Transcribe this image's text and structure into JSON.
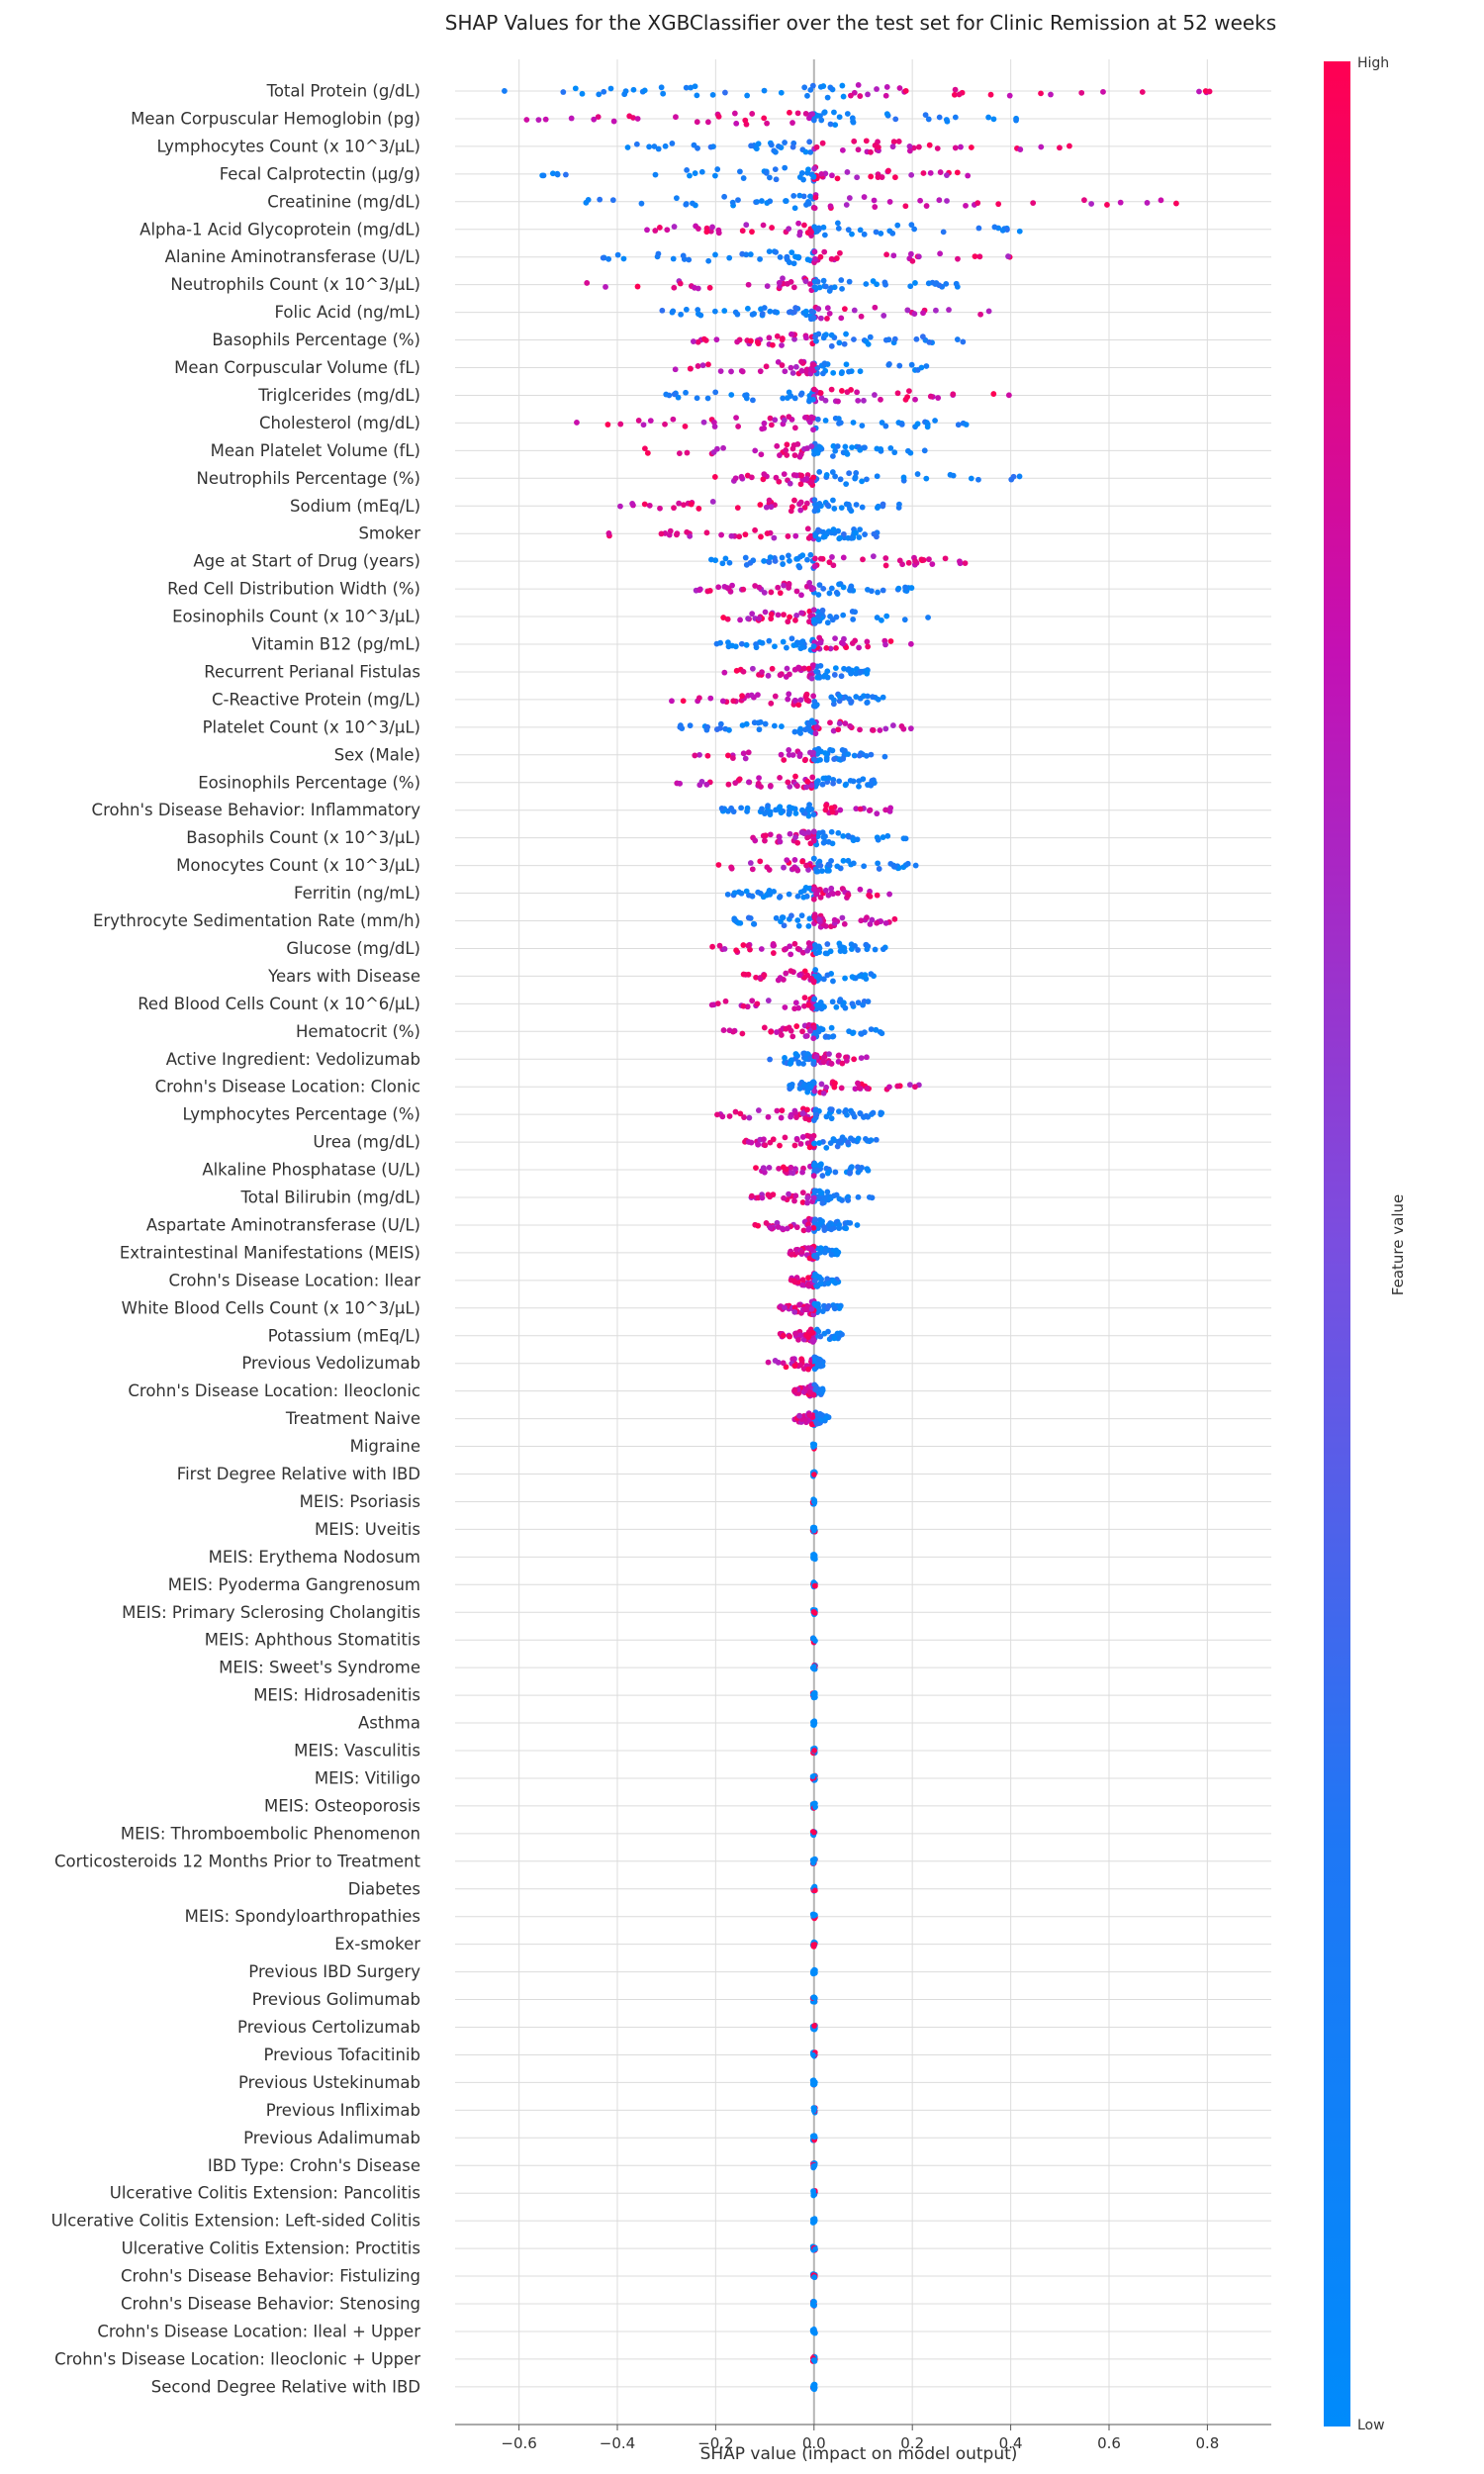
{
  "chart_data": {
    "type": "scatter",
    "title": "SHAP Values for the XGBClassifier over the test set for Clinic Remission at 52 weeks",
    "xlabel": "SHAP value (impact on model output)",
    "xlim": [
      -0.73,
      0.93
    ],
    "xticks": [
      -0.6,
      -0.4,
      -0.2,
      0.0,
      0.2,
      0.4,
      0.6,
      0.8
    ],
    "xtick_labels": [
      "−0.6",
      "−0.4",
      "−0.2",
      "0.0",
      "0.2",
      "0.4",
      "0.6",
      "0.8"
    ],
    "grid": true,
    "colorbar": {
      "label": "Feature value",
      "high_label": "High",
      "low_label": "Low",
      "high_color": "#ff0052",
      "low_color": "#008bfb"
    },
    "features": [
      {
        "name": "Total Protein (g/dL)",
        "min": -0.65,
        "max": 0.85,
        "split": 0.06,
        "low_side": "left"
      },
      {
        "name": "Mean Corpuscular Hemoglobin (pg)",
        "min": -0.61,
        "max": 0.42,
        "split": 0.0,
        "low_side": "right"
      },
      {
        "name": "Lymphocytes Count (x 10^3/μL)",
        "min": -0.39,
        "max": 0.56,
        "split": 0.0,
        "low_side": "left"
      },
      {
        "name": "Fecal Calprotectin (μg/g)",
        "min": -0.57,
        "max": 0.33,
        "split": 0.0,
        "low_side": "left"
      },
      {
        "name": "Creatinine (mg/dL)",
        "min": -0.52,
        "max": 0.78,
        "split": 0.0,
        "low_side": "left"
      },
      {
        "name": "Alpha-1 Acid Glycoprotein (mg/dL)",
        "min": -0.34,
        "max": 0.42,
        "split": 0.0,
        "low_side": "right"
      },
      {
        "name": "Alanine Aminotransferase (U/L)",
        "min": -0.44,
        "max": 0.4,
        "split": 0.0,
        "low_side": "left"
      },
      {
        "name": "Neutrophils Count (x 10^3/μL)",
        "min": -0.49,
        "max": 0.3,
        "split": 0.0,
        "low_side": "right"
      },
      {
        "name": "Folic Acid (ng/mL)",
        "min": -0.31,
        "max": 0.36,
        "split": 0.0,
        "low_side": "left"
      },
      {
        "name": "Basophils Percentage (%)",
        "min": -0.25,
        "max": 0.34,
        "split": 0.0,
        "low_side": "right"
      },
      {
        "name": "Mean Corpuscular Volume (fL)",
        "min": -0.3,
        "max": 0.24,
        "split": 0.0,
        "low_side": "right"
      },
      {
        "name": "Triglcerides (mg/dL)",
        "min": -0.31,
        "max": 0.4,
        "split": 0.0,
        "low_side": "left"
      },
      {
        "name": "Cholesterol (mg/dL)",
        "min": -0.58,
        "max": 0.41,
        "split": 0.0,
        "low_side": "right"
      },
      {
        "name": "Mean Platelet Volume (fL)",
        "min": -0.39,
        "max": 0.23,
        "split": 0.0,
        "low_side": "right"
      },
      {
        "name": "Neutrophils Percentage (%)",
        "min": -0.22,
        "max": 0.43,
        "split": 0.0,
        "low_side": "right"
      },
      {
        "name": "Sodium (mEq/L)",
        "min": -0.41,
        "max": 0.19,
        "split": 0.0,
        "low_side": "right"
      },
      {
        "name": "Smoker",
        "min": -0.44,
        "max": 0.17,
        "split": 0.0,
        "low_side": "right"
      },
      {
        "name": "Age at Start of Drug (years)",
        "min": -0.26,
        "max": 0.32,
        "split": 0.0,
        "low_side": "left"
      },
      {
        "name": "Red Cell Distribution Width (%)",
        "min": -0.24,
        "max": 0.21,
        "split": 0.0,
        "low_side": "right"
      },
      {
        "name": "Eosinophils Count (x 10^3/μL)",
        "min": -0.21,
        "max": 0.24,
        "split": 0.0,
        "low_side": "right"
      },
      {
        "name": "Vitamin B12 (pg/mL)",
        "min": -0.2,
        "max": 0.22,
        "split": 0.0,
        "low_side": "left"
      },
      {
        "name": "Recurrent Perianal Fistulas",
        "min": -0.19,
        "max": 0.11,
        "split": 0.0,
        "low_side": "right"
      },
      {
        "name": "C-Reactive Protein (mg/L)",
        "min": -0.29,
        "max": 0.16,
        "split": 0.0,
        "low_side": "right"
      },
      {
        "name": "Platelet Count (x 10^3/μL)",
        "min": -0.28,
        "max": 0.21,
        "split": 0.0,
        "low_side": "left"
      },
      {
        "name": "Sex (Male)",
        "min": -0.28,
        "max": 0.15,
        "split": 0.0,
        "low_side": "right"
      },
      {
        "name": "Eosinophils Percentage (%)",
        "min": -0.3,
        "max": 0.16,
        "split": 0.0,
        "low_side": "right"
      },
      {
        "name": "Crohn's Disease Behavior: Inflammatory",
        "min": -0.19,
        "max": 0.2,
        "split": 0.0,
        "low_side": "left"
      },
      {
        "name": "Basophils Count (x 10^3/μL)",
        "min": -0.15,
        "max": 0.2,
        "split": 0.0,
        "low_side": "right"
      },
      {
        "name": "Monocytes Count (x 10^3/μL)",
        "min": -0.22,
        "max": 0.21,
        "split": 0.0,
        "low_side": "right"
      },
      {
        "name": "Ferritin (ng/mL)",
        "min": -0.19,
        "max": 0.16,
        "split": 0.0,
        "low_side": "left"
      },
      {
        "name": "Erythrocyte Sedimentation Rate (mm/h)",
        "min": -0.17,
        "max": 0.18,
        "split": 0.0,
        "low_side": "left"
      },
      {
        "name": "Glucose (mg/dL)",
        "min": -0.25,
        "max": 0.16,
        "split": 0.0,
        "low_side": "right"
      },
      {
        "name": "Years with Disease",
        "min": -0.15,
        "max": 0.13,
        "split": 0.0,
        "low_side": "right"
      },
      {
        "name": "Red Blood Cells Count (x 10^6/μL)",
        "min": -0.22,
        "max": 0.12,
        "split": 0.0,
        "low_side": "right"
      },
      {
        "name": "Hematocrit (%)",
        "min": -0.19,
        "max": 0.14,
        "split": 0.0,
        "low_side": "right"
      },
      {
        "name": "Active Ingredient: Vedolizumab",
        "min": -0.11,
        "max": 0.11,
        "split": 0.0,
        "low_side": "left"
      },
      {
        "name": "Crohn's Disease Location: Clonic",
        "min": -0.05,
        "max": 0.22,
        "split": 0.0,
        "low_side": "left"
      },
      {
        "name": "Lymphocytes Percentage (%)",
        "min": -0.2,
        "max": 0.14,
        "split": 0.0,
        "low_side": "right"
      },
      {
        "name": "Urea (mg/dL)",
        "min": -0.15,
        "max": 0.14,
        "split": 0.0,
        "low_side": "right"
      },
      {
        "name": "Alkaline Phosphatase (U/L)",
        "min": -0.12,
        "max": 0.11,
        "split": 0.0,
        "low_side": "right"
      },
      {
        "name": "Total Bilirubin (mg/dL)",
        "min": -0.13,
        "max": 0.12,
        "split": 0.0,
        "low_side": "right"
      },
      {
        "name": "Aspartate Aminotransferase (U/L)",
        "min": -0.13,
        "max": 0.09,
        "split": 0.0,
        "low_side": "right"
      },
      {
        "name": "Extraintestinal Manifestations (MEIS)",
        "min": -0.05,
        "max": 0.05,
        "split": 0.0,
        "low_side": "right"
      },
      {
        "name": "Crohn's Disease Location: Ilear",
        "min": -0.05,
        "max": 0.05,
        "split": 0.0,
        "low_side": "right"
      },
      {
        "name": "White Blood Cells Count (x 10^3/μL)",
        "min": -0.07,
        "max": 0.06,
        "split": 0.0,
        "low_side": "right"
      },
      {
        "name": "Potassium (mEq/L)",
        "min": -0.07,
        "max": 0.06,
        "split": 0.0,
        "low_side": "right"
      },
      {
        "name": "Previous Vedolizumab",
        "min": -0.1,
        "max": 0.02,
        "split": 0.0,
        "low_side": "right"
      },
      {
        "name": "Crohn's Disease Location: Ileoclonic",
        "min": -0.04,
        "max": 0.02,
        "split": 0.0,
        "low_side": "right"
      },
      {
        "name": "Treatment Naive",
        "min": -0.04,
        "max": 0.03,
        "split": 0.0,
        "low_side": "right"
      },
      {
        "name": "Migraine",
        "min": 0.0,
        "max": 0.0,
        "split": 0.0,
        "low_side": "right"
      },
      {
        "name": "First Degree Relative with IBD",
        "min": 0.0,
        "max": 0.0,
        "split": 0.0,
        "low_side": "right"
      },
      {
        "name": "MEIS: Psoriasis",
        "min": 0.0,
        "max": 0.0,
        "split": 0.0,
        "low_side": "right"
      },
      {
        "name": "MEIS: Uveitis",
        "min": 0.0,
        "max": 0.0,
        "split": 0.0,
        "low_side": "right"
      },
      {
        "name": "MEIS: Erythema Nodosum",
        "min": 0.0,
        "max": 0.0,
        "split": 0.0,
        "low_side": "right"
      },
      {
        "name": "MEIS: Pyoderma Gangrenosum",
        "min": 0.0,
        "max": 0.0,
        "split": 0.0,
        "low_side": "right"
      },
      {
        "name": "MEIS: Primary Sclerosing Cholangitis",
        "min": 0.0,
        "max": 0.0,
        "split": 0.0,
        "low_side": "right"
      },
      {
        "name": "MEIS: Aphthous Stomatitis",
        "min": 0.0,
        "max": 0.0,
        "split": 0.0,
        "low_side": "right"
      },
      {
        "name": "MEIS: Sweet's Syndrome",
        "min": 0.0,
        "max": 0.0,
        "split": 0.0,
        "low_side": "right"
      },
      {
        "name": "MEIS: Hidrosadenitis",
        "min": 0.0,
        "max": 0.0,
        "split": 0.0,
        "low_side": "right"
      },
      {
        "name": "Asthma",
        "min": 0.0,
        "max": 0.0,
        "split": 0.0,
        "low_side": "right"
      },
      {
        "name": "MEIS: Vasculitis",
        "min": 0.0,
        "max": 0.0,
        "split": 0.0,
        "low_side": "right"
      },
      {
        "name": "MEIS: Vitiligo",
        "min": 0.0,
        "max": 0.0,
        "split": 0.0,
        "low_side": "right"
      },
      {
        "name": "MEIS: Osteoporosis",
        "min": 0.0,
        "max": 0.0,
        "split": 0.0,
        "low_side": "right"
      },
      {
        "name": "MEIS: Thromboembolic Phenomenon",
        "min": 0.0,
        "max": 0.0,
        "split": 0.0,
        "low_side": "right"
      },
      {
        "name": "Corticosteroids 12 Months Prior to Treatment",
        "min": 0.0,
        "max": 0.0,
        "split": 0.0,
        "low_side": "right"
      },
      {
        "name": "Diabetes",
        "min": 0.0,
        "max": 0.0,
        "split": 0.0,
        "low_side": "right"
      },
      {
        "name": "MEIS: Spondyloarthropathies",
        "min": 0.0,
        "max": 0.0,
        "split": 0.0,
        "low_side": "right"
      },
      {
        "name": "Ex-smoker",
        "min": 0.0,
        "max": 0.0,
        "split": 0.0,
        "low_side": "right"
      },
      {
        "name": "Previous IBD Surgery",
        "min": 0.0,
        "max": 0.0,
        "split": 0.0,
        "low_side": "right"
      },
      {
        "name": "Previous Golimumab",
        "min": 0.0,
        "max": 0.0,
        "split": 0.0,
        "low_side": "right"
      },
      {
        "name": "Previous Certolizumab",
        "min": 0.0,
        "max": 0.0,
        "split": 0.0,
        "low_side": "right"
      },
      {
        "name": "Previous Tofacitinib",
        "min": 0.0,
        "max": 0.0,
        "split": 0.0,
        "low_side": "right"
      },
      {
        "name": "Previous Ustekinumab",
        "min": 0.0,
        "max": 0.0,
        "split": 0.0,
        "low_side": "right"
      },
      {
        "name": "Previous Infliximab",
        "min": 0.0,
        "max": 0.0,
        "split": 0.0,
        "low_side": "right"
      },
      {
        "name": "Previous Adalimumab",
        "min": 0.0,
        "max": 0.0,
        "split": 0.0,
        "low_side": "right"
      },
      {
        "name": "IBD Type: Crohn's Disease",
        "min": 0.0,
        "max": 0.0,
        "split": 0.0,
        "low_side": "right"
      },
      {
        "name": "Ulcerative Colitis Extension: Pancolitis",
        "min": 0.0,
        "max": 0.0,
        "split": 0.0,
        "low_side": "right"
      },
      {
        "name": "Ulcerative Colitis Extension: Left-sided Colitis",
        "min": 0.0,
        "max": 0.0,
        "split": 0.0,
        "low_side": "right"
      },
      {
        "name": "Ulcerative Colitis Extension: Proctitis",
        "min": 0.0,
        "max": 0.0,
        "split": 0.0,
        "low_side": "right"
      },
      {
        "name": "Crohn's Disease Behavior: Fistulizing",
        "min": 0.0,
        "max": 0.0,
        "split": 0.0,
        "low_side": "right"
      },
      {
        "name": "Crohn's Disease Behavior: Stenosing",
        "min": 0.0,
        "max": 0.0,
        "split": 0.0,
        "low_side": "right"
      },
      {
        "name": "Crohn's Disease Location: Ileal + Upper",
        "min": 0.0,
        "max": 0.0,
        "split": 0.0,
        "low_side": "right"
      },
      {
        "name": "Crohn's Disease Location: Ileoclonic + Upper",
        "min": 0.0,
        "max": 0.0,
        "split": 0.0,
        "low_side": "right"
      },
      {
        "name": "Second Degree Relative with IBD",
        "min": 0.0,
        "max": 0.0,
        "split": 0.0,
        "low_side": "right"
      }
    ]
  }
}
